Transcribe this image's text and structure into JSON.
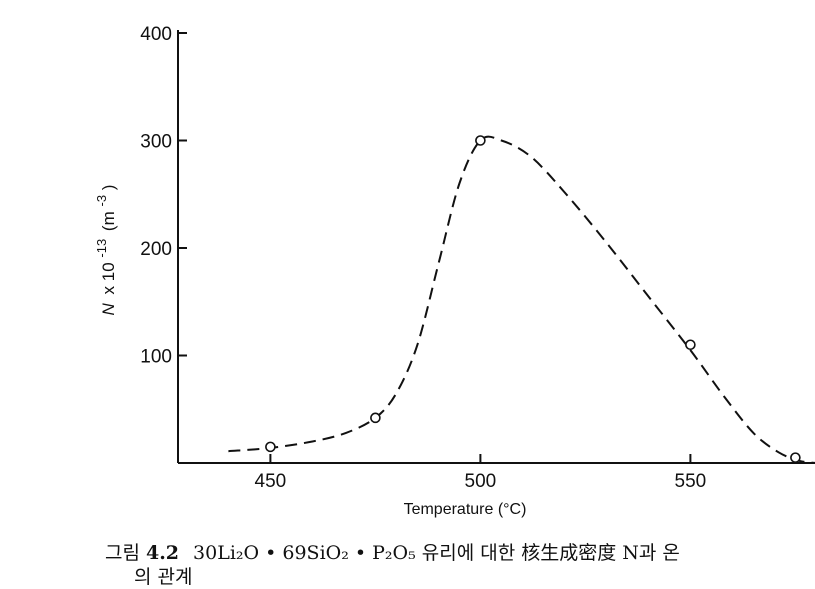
{
  "chart_data": {
    "type": "scatter",
    "title": "",
    "xlabel": "Temperature  (°C)",
    "ylabel": "N x 10^-13 (m^-3)",
    "ylabel_parts": {
      "symbol": "N",
      "times": "x 10",
      "exp": "-13",
      "unit_open": "(m",
      "unit_exp": "-3",
      "unit_close": ")"
    },
    "xlim": [
      428,
      580
    ],
    "ylim": [
      0,
      400
    ],
    "xticks": [
      450,
      500,
      550
    ],
    "yticks": [
      100,
      200,
      300,
      400
    ],
    "xtick_labels": [
      "450",
      "500",
      "550"
    ],
    "ytick_labels": [
      "100",
      "200",
      "300",
      "400"
    ],
    "grid": false,
    "series": [
      {
        "style": "markers",
        "marker": "open-circle",
        "points": [
          {
            "x": 450,
            "y": 15
          },
          {
            "x": 475,
            "y": 42
          },
          {
            "x": 500,
            "y": 300
          },
          {
            "x": 550,
            "y": 110
          },
          {
            "x": 575,
            "y": 5
          }
        ]
      },
      {
        "style": "dashed-curve",
        "points": [
          {
            "x": 440,
            "y": 11
          },
          {
            "x": 450,
            "y": 14
          },
          {
            "x": 460,
            "y": 20
          },
          {
            "x": 468,
            "y": 28
          },
          {
            "x": 475,
            "y": 42
          },
          {
            "x": 480,
            "y": 65
          },
          {
            "x": 485,
            "y": 110
          },
          {
            "x": 490,
            "y": 185
          },
          {
            "x": 495,
            "y": 260
          },
          {
            "x": 500,
            "y": 300
          },
          {
            "x": 505,
            "y": 300
          },
          {
            "x": 512,
            "y": 285
          },
          {
            "x": 520,
            "y": 252
          },
          {
            "x": 530,
            "y": 205
          },
          {
            "x": 540,
            "y": 155
          },
          {
            "x": 550,
            "y": 105
          },
          {
            "x": 558,
            "y": 62
          },
          {
            "x": 565,
            "y": 28
          },
          {
            "x": 571,
            "y": 10
          },
          {
            "x": 576,
            "y": 2
          },
          {
            "x": 580,
            "y": 0
          }
        ]
      }
    ]
  },
  "caption": {
    "label": "그림",
    "number": "4.2",
    "text": "30Li₂O • 69SiO₂ • P₂O₅ 유리에 대한  核生成密度 N과 온",
    "line2": "의 관계"
  },
  "colors": {
    "ink": "#111111",
    "background": "#ffffff"
  }
}
